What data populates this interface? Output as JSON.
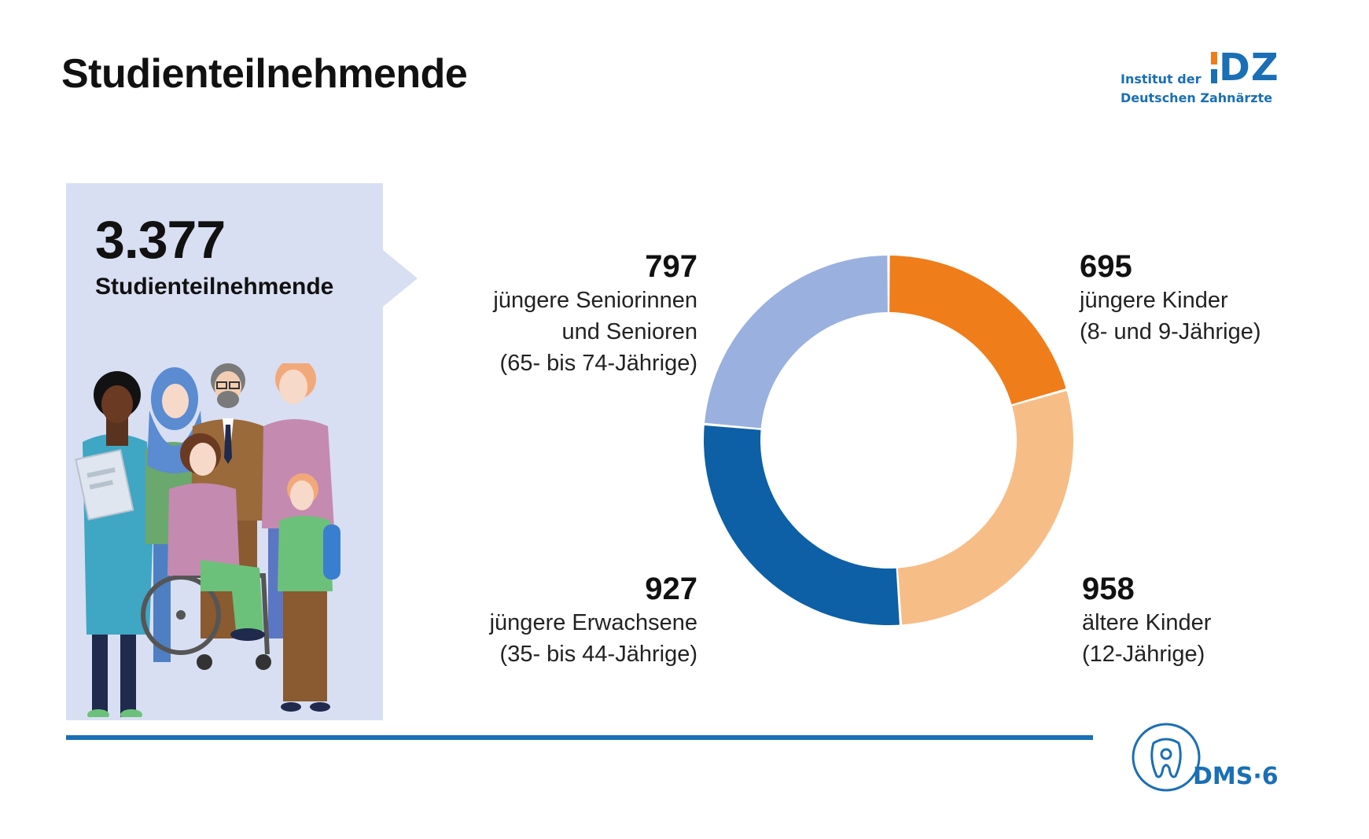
{
  "header": {
    "title": "Studienteilnehmende"
  },
  "logo_idz": {
    "line1": "Institut der",
    "line2": "Deutschen Zahnärzte",
    "letters": "DZ"
  },
  "summary": {
    "total": "3.377",
    "label": "Studienteilnehmende"
  },
  "chart_data": {
    "type": "pie",
    "variant": "donut",
    "title": "",
    "slices": [
      {
        "value": 695,
        "label": "jüngere Kinder",
        "sublabel": "(8- und 9-Jährige)",
        "color": "#ef7d1a"
      },
      {
        "value": 958,
        "label": "ältere Kinder",
        "sublabel": "(12-Jährige)",
        "color": "#f7bd87"
      },
      {
        "value": 927,
        "label": "jüngere Erwachsene",
        "sublabel": "(35- bis 44-Jährige)",
        "color": "#0d5fa6"
      },
      {
        "value": 797,
        "label": "jüngere Seniorinnen und Senioren",
        "sublabel": "(65- bis 74-Jährige)",
        "color": "#9ab0df"
      }
    ],
    "total": 3377
  },
  "labels": {
    "seniors": {
      "value": "797",
      "line1": "jüngere Seniorinnen",
      "line2": "und Senioren",
      "line3": "(65- bis 74-Jährige)"
    },
    "young_children": {
      "value": "695",
      "line1": "jüngere Kinder",
      "line2": "(8- und 9-Jährige)"
    },
    "adults": {
      "value": "927",
      "line1": "jüngere Erwachsene",
      "line2": "(35- bis 44-Jährige)"
    },
    "older_children": {
      "value": "958",
      "line1": "ältere Kinder",
      "line2": "(12-Jährige)"
    }
  },
  "logo_dms": {
    "text": "DMS·6"
  },
  "colors": {
    "brand_blue": "#1a6fb5",
    "brand_orange": "#ef7d1a",
    "panel_bg": "#d8dff2"
  }
}
